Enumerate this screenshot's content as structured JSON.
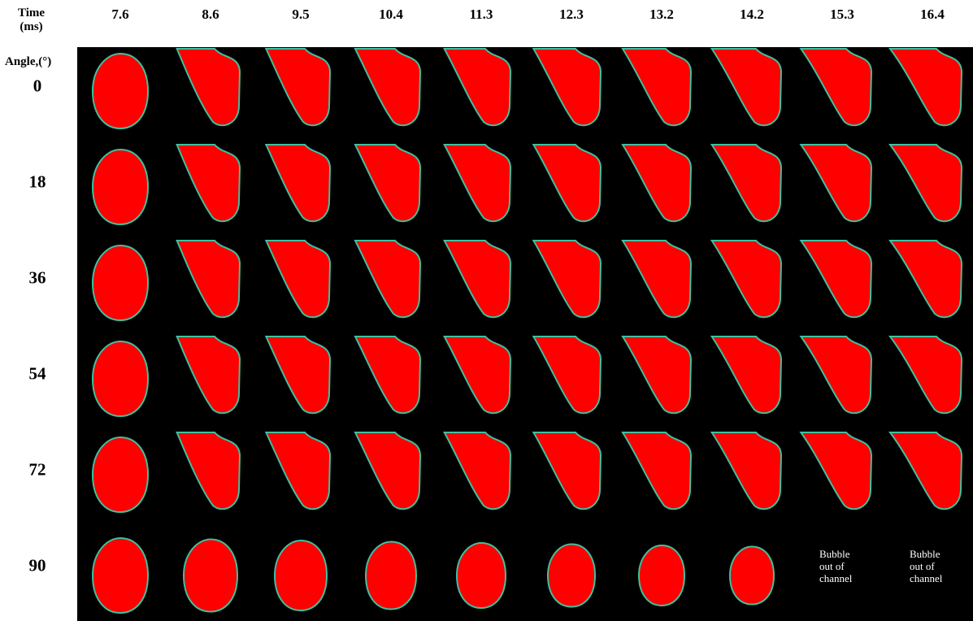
{
  "header": {
    "time_label": [
      "Time",
      "(ms)"
    ],
    "angle_label": "Angle,(°)",
    "times": [
      "7.6",
      "8.6",
      "9.5",
      "10.4",
      "11.3",
      "12.3",
      "13.2",
      "14.2",
      "15.3",
      "16.4"
    ]
  },
  "rows": [
    {
      "angle": "0"
    },
    {
      "angle": "18"
    },
    {
      "angle": "36"
    },
    {
      "angle": "54"
    },
    {
      "angle": "72"
    },
    {
      "angle": "90",
      "notes": {
        "8": "Bubble out of channel",
        "9": "Bubble out of channel"
      }
    }
  ]
}
